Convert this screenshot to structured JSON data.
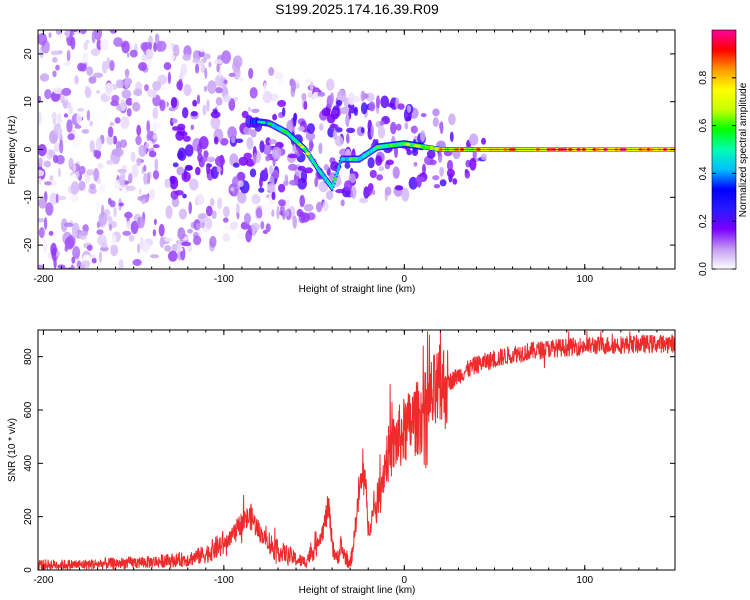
{
  "title": "S199.2025.174.16.39.R09",
  "chart_data": [
    {
      "type": "heatmap",
      "xlabel": "Height of straight line (km)",
      "ylabel": "Frequency (Hz)",
      "xlim": [
        -203,
        150
      ],
      "ylim": [
        -25,
        25
      ],
      "xticks": [
        -200,
        -100,
        0,
        100
      ],
      "yticks": [
        -20,
        -10,
        0,
        10,
        20
      ],
      "colorbar": {
        "label": "Normalized spectral amplitude",
        "ticks": [
          0.0,
          0.2,
          0.4,
          0.6,
          0.8
        ],
        "range": [
          0,
          1
        ],
        "colormap": [
          "#ffffff",
          "#c39cf2",
          "#7a00ff",
          "#2a18ff",
          "#0000ff",
          "#00bfff",
          "#00ffb0",
          "#00ff00",
          "#c8ff00",
          "#ffff00",
          "#ff9a00",
          "#ff0000",
          "#ff00a0"
        ]
      },
      "ridge": [
        {
          "x": -85,
          "y": 6,
          "amp": 0.35
        },
        {
          "x": -75,
          "y": 5.5,
          "amp": 0.4
        },
        {
          "x": -65,
          "y": 3.5,
          "amp": 0.55
        },
        {
          "x": -55,
          "y": 0,
          "amp": 0.6
        },
        {
          "x": -48,
          "y": -4,
          "amp": 0.55
        },
        {
          "x": -40,
          "y": -8,
          "amp": 0.5
        },
        {
          "x": -35,
          "y": -2,
          "amp": 0.45
        },
        {
          "x": -25,
          "y": -2,
          "amp": 0.5
        },
        {
          "x": -15,
          "y": 0.5,
          "amp": 0.55
        },
        {
          "x": 0,
          "y": 1.2,
          "amp": 0.6
        },
        {
          "x": 20,
          "y": 0,
          "amp": 0.75
        },
        {
          "x": 60,
          "y": 0,
          "amp": 0.8
        },
        {
          "x": 100,
          "y": 0,
          "amp": 0.85
        },
        {
          "x": 150,
          "y": 0,
          "amp": 0.85
        }
      ]
    },
    {
      "type": "line",
      "xlabel": "Height of straight line (km)",
      "ylabel": "SNR (10 * v/v)",
      "xlim": [
        -203,
        150
      ],
      "ylim": [
        0,
        900
      ],
      "xticks": [
        -200,
        -100,
        0,
        100
      ],
      "yticks": [
        0,
        200,
        400,
        600,
        800
      ],
      "color": "#ee2a2a",
      "series": [
        {
          "x": [
            -203,
            -180,
            -160,
            -140,
            -120,
            -110,
            -100,
            -95,
            -90,
            -85,
            -80,
            -75,
            -70,
            -65,
            -60,
            -55,
            -50,
            -45,
            -42,
            -40,
            -38,
            -35,
            -32,
            -30,
            -28,
            -25,
            -22,
            -20,
            -15,
            -12,
            -10,
            -5,
            0,
            5,
            10,
            15,
            20,
            30,
            40,
            50,
            60,
            80,
            100,
            120,
            150
          ],
          "values": [
            20,
            20,
            25,
            30,
            40,
            60,
            100,
            130,
            180,
            200,
            140,
            100,
            70,
            60,
            40,
            30,
            80,
            150,
            240,
            110,
            40,
            80,
            40,
            20,
            110,
            300,
            360,
            150,
            260,
            350,
            420,
            480,
            520,
            560,
            580,
            640,
            680,
            730,
            770,
            790,
            810,
            830,
            840,
            845,
            850
          ]
        }
      ]
    }
  ]
}
